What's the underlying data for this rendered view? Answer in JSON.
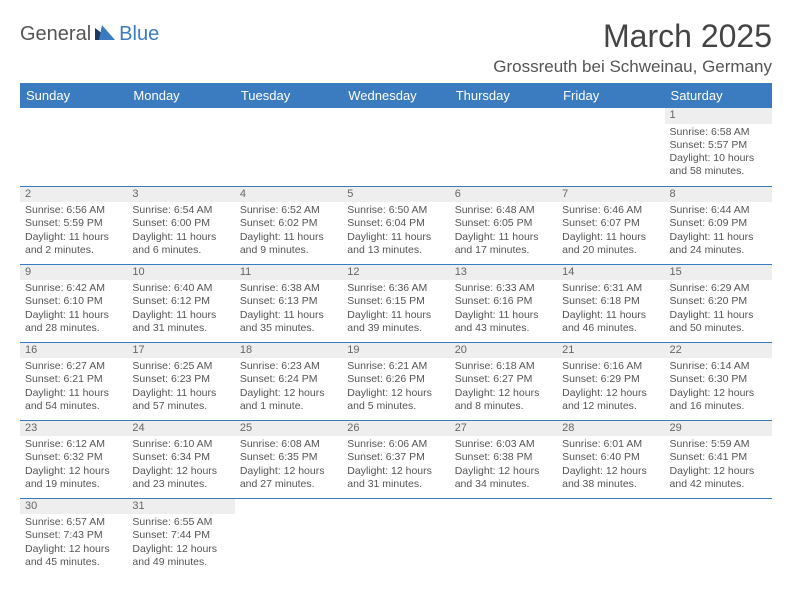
{
  "logo": {
    "general": "General",
    "blue": "Blue"
  },
  "title": "March 2025",
  "location": "Grossreuth bei Schweinau, Germany",
  "colors": {
    "header_bg": "#3b7bbf",
    "header_text": "#ffffff",
    "daynum_bg": "#eeeeee",
    "row_border": "#3b7bbf",
    "text": "#555555",
    "logo_blue": "#3b7bbf",
    "logo_dark": "#1f3a5f"
  },
  "weekdays": [
    "Sunday",
    "Monday",
    "Tuesday",
    "Wednesday",
    "Thursday",
    "Friday",
    "Saturday"
  ],
  "weeks": [
    [
      null,
      null,
      null,
      null,
      null,
      null,
      {
        "n": "1",
        "sunrise": "Sunrise: 6:58 AM",
        "sunset": "Sunset: 5:57 PM",
        "daylight": "Daylight: 10 hours and 58 minutes."
      }
    ],
    [
      {
        "n": "2",
        "sunrise": "Sunrise: 6:56 AM",
        "sunset": "Sunset: 5:59 PM",
        "daylight": "Daylight: 11 hours and 2 minutes."
      },
      {
        "n": "3",
        "sunrise": "Sunrise: 6:54 AM",
        "sunset": "Sunset: 6:00 PM",
        "daylight": "Daylight: 11 hours and 6 minutes."
      },
      {
        "n": "4",
        "sunrise": "Sunrise: 6:52 AM",
        "sunset": "Sunset: 6:02 PM",
        "daylight": "Daylight: 11 hours and 9 minutes."
      },
      {
        "n": "5",
        "sunrise": "Sunrise: 6:50 AM",
        "sunset": "Sunset: 6:04 PM",
        "daylight": "Daylight: 11 hours and 13 minutes."
      },
      {
        "n": "6",
        "sunrise": "Sunrise: 6:48 AM",
        "sunset": "Sunset: 6:05 PM",
        "daylight": "Daylight: 11 hours and 17 minutes."
      },
      {
        "n": "7",
        "sunrise": "Sunrise: 6:46 AM",
        "sunset": "Sunset: 6:07 PM",
        "daylight": "Daylight: 11 hours and 20 minutes."
      },
      {
        "n": "8",
        "sunrise": "Sunrise: 6:44 AM",
        "sunset": "Sunset: 6:09 PM",
        "daylight": "Daylight: 11 hours and 24 minutes."
      }
    ],
    [
      {
        "n": "9",
        "sunrise": "Sunrise: 6:42 AM",
        "sunset": "Sunset: 6:10 PM",
        "daylight": "Daylight: 11 hours and 28 minutes."
      },
      {
        "n": "10",
        "sunrise": "Sunrise: 6:40 AM",
        "sunset": "Sunset: 6:12 PM",
        "daylight": "Daylight: 11 hours and 31 minutes."
      },
      {
        "n": "11",
        "sunrise": "Sunrise: 6:38 AM",
        "sunset": "Sunset: 6:13 PM",
        "daylight": "Daylight: 11 hours and 35 minutes."
      },
      {
        "n": "12",
        "sunrise": "Sunrise: 6:36 AM",
        "sunset": "Sunset: 6:15 PM",
        "daylight": "Daylight: 11 hours and 39 minutes."
      },
      {
        "n": "13",
        "sunrise": "Sunrise: 6:33 AM",
        "sunset": "Sunset: 6:16 PM",
        "daylight": "Daylight: 11 hours and 43 minutes."
      },
      {
        "n": "14",
        "sunrise": "Sunrise: 6:31 AM",
        "sunset": "Sunset: 6:18 PM",
        "daylight": "Daylight: 11 hours and 46 minutes."
      },
      {
        "n": "15",
        "sunrise": "Sunrise: 6:29 AM",
        "sunset": "Sunset: 6:20 PM",
        "daylight": "Daylight: 11 hours and 50 minutes."
      }
    ],
    [
      {
        "n": "16",
        "sunrise": "Sunrise: 6:27 AM",
        "sunset": "Sunset: 6:21 PM",
        "daylight": "Daylight: 11 hours and 54 minutes."
      },
      {
        "n": "17",
        "sunrise": "Sunrise: 6:25 AM",
        "sunset": "Sunset: 6:23 PM",
        "daylight": "Daylight: 11 hours and 57 minutes."
      },
      {
        "n": "18",
        "sunrise": "Sunrise: 6:23 AM",
        "sunset": "Sunset: 6:24 PM",
        "daylight": "Daylight: 12 hours and 1 minute."
      },
      {
        "n": "19",
        "sunrise": "Sunrise: 6:21 AM",
        "sunset": "Sunset: 6:26 PM",
        "daylight": "Daylight: 12 hours and 5 minutes."
      },
      {
        "n": "20",
        "sunrise": "Sunrise: 6:18 AM",
        "sunset": "Sunset: 6:27 PM",
        "daylight": "Daylight: 12 hours and 8 minutes."
      },
      {
        "n": "21",
        "sunrise": "Sunrise: 6:16 AM",
        "sunset": "Sunset: 6:29 PM",
        "daylight": "Daylight: 12 hours and 12 minutes."
      },
      {
        "n": "22",
        "sunrise": "Sunrise: 6:14 AM",
        "sunset": "Sunset: 6:30 PM",
        "daylight": "Daylight: 12 hours and 16 minutes."
      }
    ],
    [
      {
        "n": "23",
        "sunrise": "Sunrise: 6:12 AM",
        "sunset": "Sunset: 6:32 PM",
        "daylight": "Daylight: 12 hours and 19 minutes."
      },
      {
        "n": "24",
        "sunrise": "Sunrise: 6:10 AM",
        "sunset": "Sunset: 6:34 PM",
        "daylight": "Daylight: 12 hours and 23 minutes."
      },
      {
        "n": "25",
        "sunrise": "Sunrise: 6:08 AM",
        "sunset": "Sunset: 6:35 PM",
        "daylight": "Daylight: 12 hours and 27 minutes."
      },
      {
        "n": "26",
        "sunrise": "Sunrise: 6:06 AM",
        "sunset": "Sunset: 6:37 PM",
        "daylight": "Daylight: 12 hours and 31 minutes."
      },
      {
        "n": "27",
        "sunrise": "Sunrise: 6:03 AM",
        "sunset": "Sunset: 6:38 PM",
        "daylight": "Daylight: 12 hours and 34 minutes."
      },
      {
        "n": "28",
        "sunrise": "Sunrise: 6:01 AM",
        "sunset": "Sunset: 6:40 PM",
        "daylight": "Daylight: 12 hours and 38 minutes."
      },
      {
        "n": "29",
        "sunrise": "Sunrise: 5:59 AM",
        "sunset": "Sunset: 6:41 PM",
        "daylight": "Daylight: 12 hours and 42 minutes."
      }
    ],
    [
      {
        "n": "30",
        "sunrise": "Sunrise: 6:57 AM",
        "sunset": "Sunset: 7:43 PM",
        "daylight": "Daylight: 12 hours and 45 minutes."
      },
      {
        "n": "31",
        "sunrise": "Sunrise: 6:55 AM",
        "sunset": "Sunset: 7:44 PM",
        "daylight": "Daylight: 12 hours and 49 minutes."
      },
      null,
      null,
      null,
      null,
      null
    ]
  ]
}
